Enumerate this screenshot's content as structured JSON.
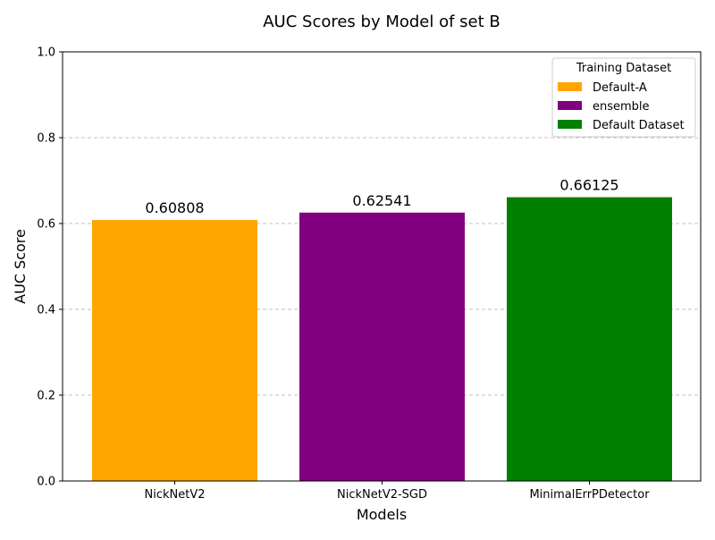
{
  "chart_data": {
    "type": "bar",
    "title": "AUC Scores by Model of set B",
    "xlabel": "Models",
    "ylabel": "AUC Score",
    "categories": [
      "NickNetV2",
      "NickNetV2-SGD",
      "MinimalErrPDetector"
    ],
    "values": [
      0.60808,
      0.62541,
      0.66125
    ],
    "data_labels": [
      "0.60808",
      "0.62541",
      "0.66125"
    ],
    "colors": [
      "#ffa500",
      "#800080",
      "#008000"
    ],
    "ylim": [
      0,
      1.0
    ],
    "yticks": [
      0.0,
      0.2,
      0.4,
      0.6,
      0.8,
      1.0
    ],
    "ytick_labels": [
      "0.0",
      "0.2",
      "0.4",
      "0.6",
      "0.8",
      "1.0"
    ],
    "grid": {
      "axis": "y",
      "style": "dashed",
      "color": "#c0c0c0"
    },
    "legend": {
      "title": "Training Dataset",
      "placement": "top-right",
      "entries": [
        {
          "label": "Default-A",
          "color": "#ffa500"
        },
        {
          "label": "ensemble",
          "color": "#800080"
        },
        {
          "label": "Default Dataset",
          "color": "#008000"
        }
      ]
    }
  }
}
